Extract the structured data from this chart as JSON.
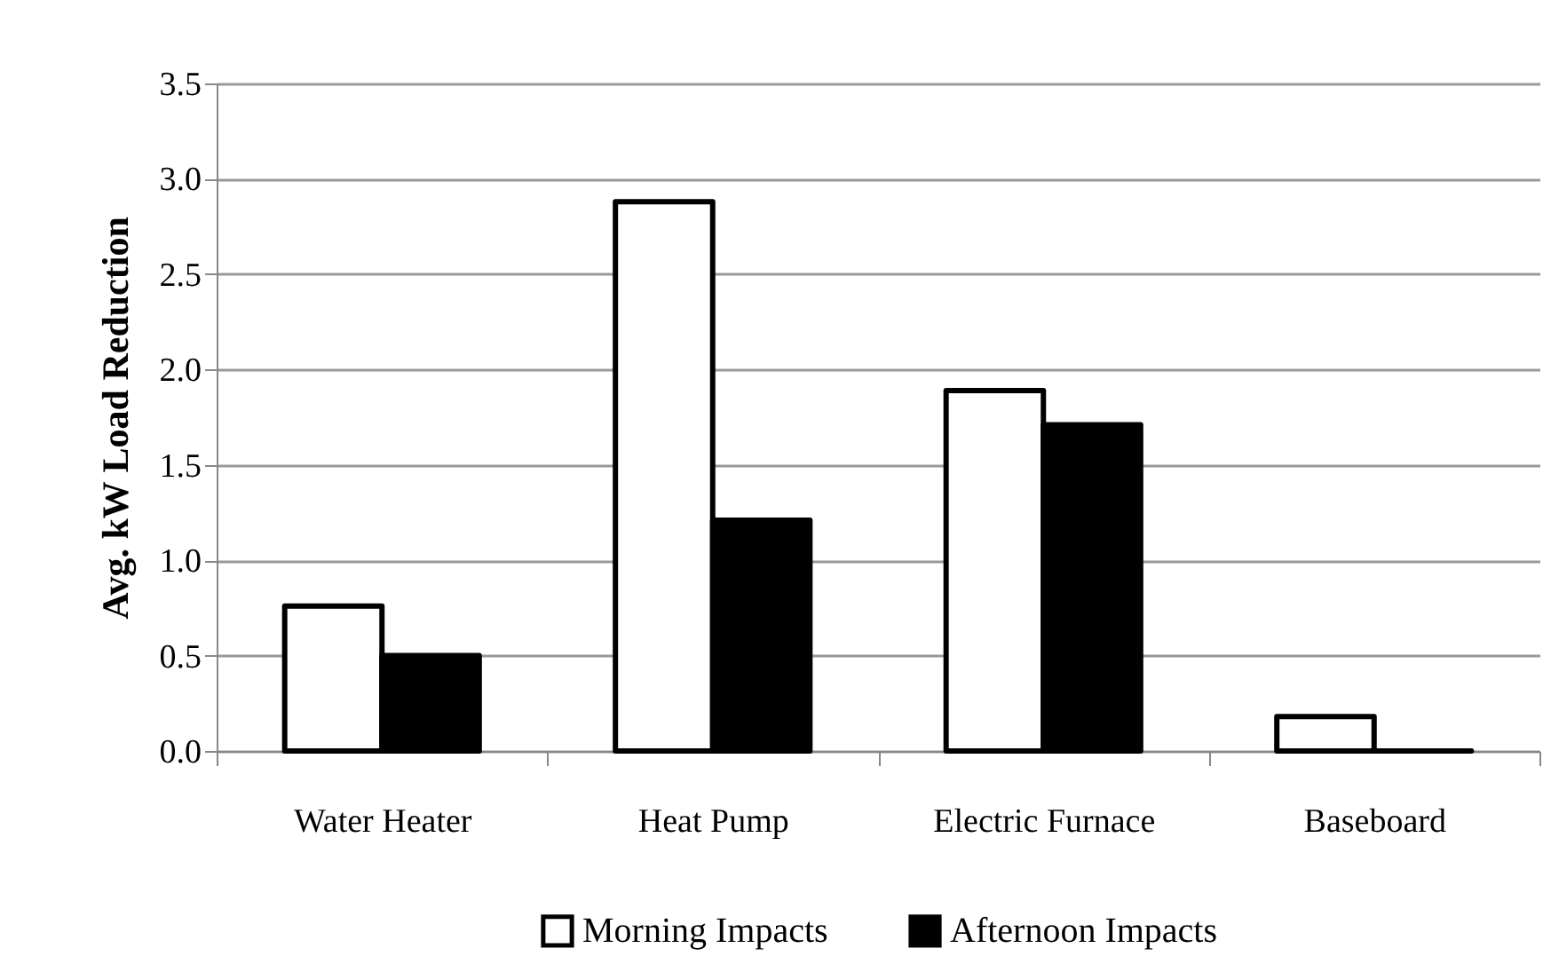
{
  "chart_data": {
    "type": "bar",
    "ylabel": "Avg. kW Load Reduction",
    "categories": [
      "Water Heater",
      "Heat Pump",
      "Electric Furnace",
      "Baseboard"
    ],
    "series": [
      {
        "name": "Morning Impacts",
        "color": "#ffffff",
        "values": [
          0.76,
          2.88,
          1.89,
          0.18
        ]
      },
      {
        "name": "Afternoon Impacts",
        "color": "#000000",
        "values": [
          0.5,
          1.21,
          1.71,
          0
        ]
      }
    ],
    "ylim": [
      0,
      3.5
    ],
    "yticks": [
      {
        "value": 0,
        "label": "0.0"
      },
      {
        "value": 0.5,
        "label": "0.5"
      },
      {
        "value": 1,
        "label": "1.0"
      },
      {
        "value": 1.5,
        "label": "1.5"
      },
      {
        "value": 2,
        "label": "2.0"
      },
      {
        "value": 2.5,
        "label": "2.5"
      },
      {
        "value": 3,
        "label": "3.0"
      },
      {
        "value": 3.5,
        "label": "3.5"
      }
    ],
    "grid": "y",
    "legend": "bottom"
  }
}
